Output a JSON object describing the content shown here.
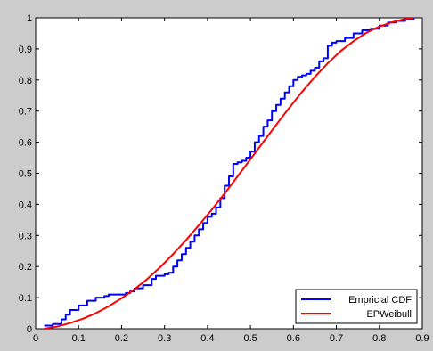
{
  "chart_data": {
    "type": "line",
    "title": "",
    "xlabel": "",
    "ylabel": "",
    "xlim": [
      0,
      0.9
    ],
    "ylim": [
      0,
      1
    ],
    "xticks": [
      0,
      0.1,
      0.2,
      0.3,
      0.4,
      0.5,
      0.6,
      0.7,
      0.8,
      0.9
    ],
    "xtick_labels": [
      "0",
      "0.1",
      "0.2",
      "0.3",
      "0.4",
      "0.5",
      "0.6",
      "0.7",
      "0.8",
      "0.9"
    ],
    "yticks": [
      0,
      0.1,
      0.2,
      0.3,
      0.4,
      0.5,
      0.6,
      0.7,
      0.8,
      0.9,
      1
    ],
    "ytick_labels": [
      "0",
      "0.1",
      "0.2",
      "0.3",
      "0.4",
      "0.5",
      "0.6",
      "0.7",
      "0.8",
      "0.9",
      "1"
    ],
    "grid": false,
    "legend_position": "bottom-right",
    "series": [
      {
        "name": "Empricial CDF",
        "color": "#0000ff",
        "step": true,
        "x": [
          0.02,
          0.04,
          0.06,
          0.07,
          0.08,
          0.1,
          0.12,
          0.14,
          0.16,
          0.17,
          0.19,
          0.21,
          0.22,
          0.23,
          0.25,
          0.27,
          0.28,
          0.3,
          0.31,
          0.32,
          0.33,
          0.34,
          0.35,
          0.36,
          0.37,
          0.38,
          0.39,
          0.4,
          0.41,
          0.42,
          0.43,
          0.44,
          0.45,
          0.46,
          0.47,
          0.48,
          0.49,
          0.5,
          0.51,
          0.52,
          0.53,
          0.54,
          0.55,
          0.56,
          0.57,
          0.58,
          0.59,
          0.6,
          0.61,
          0.62,
          0.63,
          0.64,
          0.65,
          0.66,
          0.67,
          0.68,
          0.69,
          0.7,
          0.72,
          0.74,
          0.76,
          0.78,
          0.8,
          0.82,
          0.84,
          0.86,
          0.88
        ],
        "y": [
          0.01,
          0.015,
          0.03,
          0.045,
          0.06,
          0.075,
          0.09,
          0.1,
          0.105,
          0.11,
          0.11,
          0.115,
          0.12,
          0.13,
          0.14,
          0.16,
          0.17,
          0.175,
          0.18,
          0.2,
          0.22,
          0.24,
          0.26,
          0.28,
          0.3,
          0.32,
          0.34,
          0.36,
          0.37,
          0.39,
          0.42,
          0.46,
          0.49,
          0.53,
          0.535,
          0.54,
          0.55,
          0.57,
          0.6,
          0.62,
          0.65,
          0.67,
          0.7,
          0.72,
          0.74,
          0.76,
          0.78,
          0.8,
          0.81,
          0.815,
          0.82,
          0.83,
          0.84,
          0.86,
          0.87,
          0.91,
          0.92,
          0.925,
          0.935,
          0.95,
          0.96,
          0.965,
          0.975,
          0.985,
          0.99,
          0.995,
          1.0
        ]
      },
      {
        "name": "EPWeibull",
        "color": "#ff0000",
        "step": false,
        "x": [
          0.02,
          0.05,
          0.08,
          0.11,
          0.14,
          0.17,
          0.2,
          0.23,
          0.26,
          0.29,
          0.32,
          0.35,
          0.38,
          0.41,
          0.44,
          0.47,
          0.5,
          0.53,
          0.56,
          0.59,
          0.62,
          0.65,
          0.68,
          0.71,
          0.74,
          0.77,
          0.8,
          0.83,
          0.86,
          0.88
        ],
        "y": [
          0.0,
          0.007,
          0.018,
          0.032,
          0.05,
          0.072,
          0.098,
          0.127,
          0.16,
          0.198,
          0.24,
          0.285,
          0.333,
          0.383,
          0.435,
          0.49,
          0.545,
          0.601,
          0.656,
          0.71,
          0.762,
          0.81,
          0.854,
          0.893,
          0.925,
          0.952,
          0.972,
          0.986,
          0.996,
          1.0
        ]
      }
    ]
  }
}
